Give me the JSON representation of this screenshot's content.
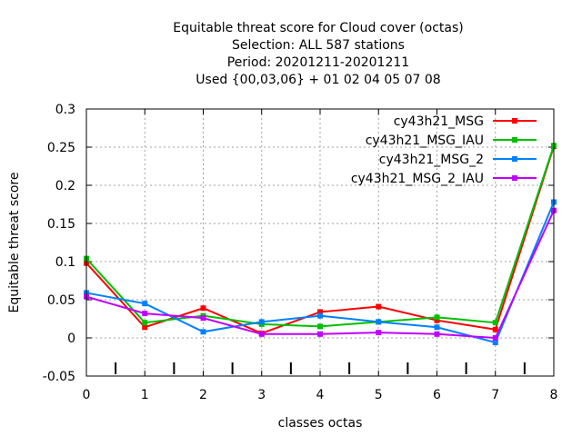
{
  "chart_data": {
    "type": "line",
    "title": [
      "Equitable threat score  for Cloud cover (octas)",
      "Selection: ALL    587 stations",
      "Period: 20201211-20201211",
      "Used {00,03,06} + 01 02 04 05 07 08"
    ],
    "xlabel": "classes octas",
    "ylabel": "Equitable threat score",
    "xlim": [
      0,
      8
    ],
    "ylim": [
      -0.05,
      0.3
    ],
    "x": [
      0,
      1,
      2,
      3,
      4,
      5,
      6,
      7,
      8
    ],
    "x_tick_labels": [
      "0",
      "1",
      "2",
      "3",
      "4",
      "5",
      "6",
      "7",
      "8"
    ],
    "y_ticks": [
      -0.05,
      0,
      0.05,
      0.1,
      0.15,
      0.2,
      0.25,
      0.3
    ],
    "y_tick_labels": [
      "-0.05",
      "0",
      "0.05",
      "0.1",
      "0.15",
      "0.2",
      "0.25",
      "0.3"
    ],
    "grid": true,
    "legend_position": "top-right",
    "series": [
      {
        "name": "cy43h21_MSG",
        "color": "#ff0000",
        "values": [
          0.098,
          0.014,
          0.039,
          0.006,
          0.034,
          0.041,
          0.023,
          0.011,
          0.251
        ]
      },
      {
        "name": "cy43h21_MSG_IAU",
        "color": "#00c000",
        "values": [
          0.104,
          0.02,
          0.029,
          0.018,
          0.015,
          0.021,
          0.027,
          0.02,
          0.252
        ]
      },
      {
        "name": "cy43h21_MSG_2",
        "color": "#0080ff",
        "values": [
          0.059,
          0.045,
          0.008,
          0.021,
          0.029,
          0.021,
          0.014,
          -0.006,
          0.178
        ]
      },
      {
        "name": "cy43h21_MSG_2_IAU",
        "color": "#c000ff",
        "values": [
          0.054,
          0.032,
          0.026,
          0.005,
          0.005,
          0.007,
          0.005,
          0.0,
          0.167
        ]
      }
    ]
  }
}
